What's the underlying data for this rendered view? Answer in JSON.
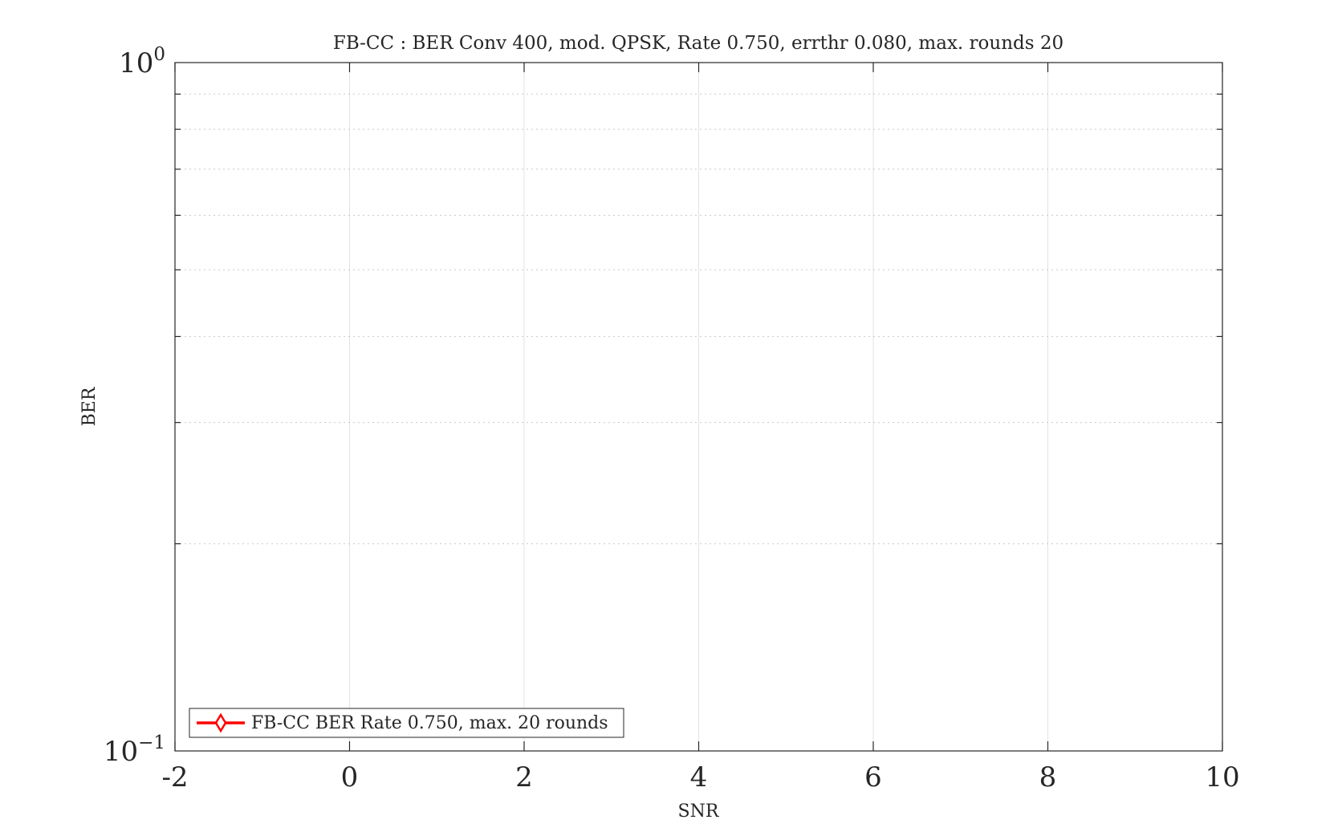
{
  "chart_data": {
    "type": "line",
    "title": "FB-CC : BER Conv 400, mod. QPSK, Rate 0.750, errthr 0.080, max. rounds 20",
    "xlabel": "SNR",
    "ylabel": "BER",
    "xlim": [
      -2,
      10
    ],
    "ylim": [
      0.1,
      1
    ],
    "yscale": "log",
    "grid": true,
    "x_ticks": [
      "-2",
      "0",
      "2",
      "4",
      "6",
      "8",
      "10"
    ],
    "y_ticks": [
      {
        "base": "10",
        "exp": "−1",
        "value": 0.1
      },
      {
        "base": "10",
        "exp": "0",
        "value": 1
      }
    ],
    "series": [
      {
        "name": "FB-CC BER Rate 0.750, max. 20 rounds",
        "color": "#ff0000",
        "marker": "diamond",
        "x": [],
        "y": []
      }
    ],
    "legend_location": "bottom-left"
  }
}
